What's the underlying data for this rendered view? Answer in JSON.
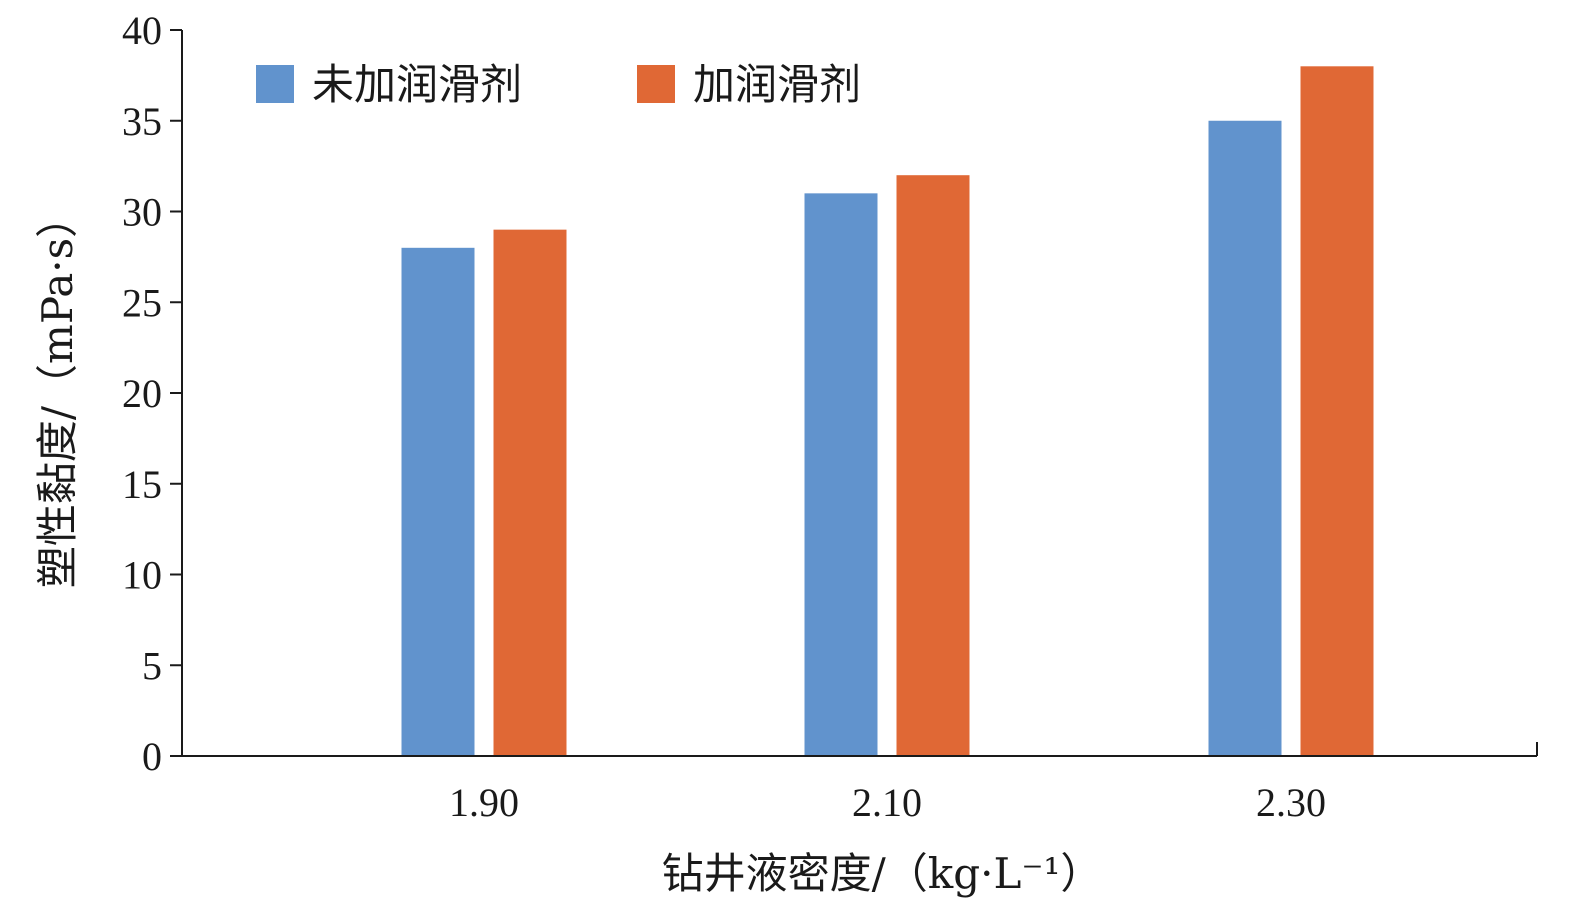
{
  "chart_data": {
    "type": "bar",
    "categories": [
      "1.90",
      "2.10",
      "2.30"
    ],
    "series": [
      {
        "name": "未加润滑剂",
        "values": [
          28,
          31,
          35
        ],
        "color": "#6193cd"
      },
      {
        "name": "加润滑剂",
        "values": [
          29,
          32,
          38
        ],
        "color": "#e06835"
      }
    ],
    "xlabel": "钻井液密度/（kg·L⁻¹）",
    "ylabel": "塑性黏度/（mPa·s）",
    "ylim": [
      0,
      40
    ],
    "yticks": [
      0,
      5,
      10,
      15,
      20,
      25,
      30,
      35,
      40
    ],
    "grid": false,
    "legend_position": "top-left"
  }
}
